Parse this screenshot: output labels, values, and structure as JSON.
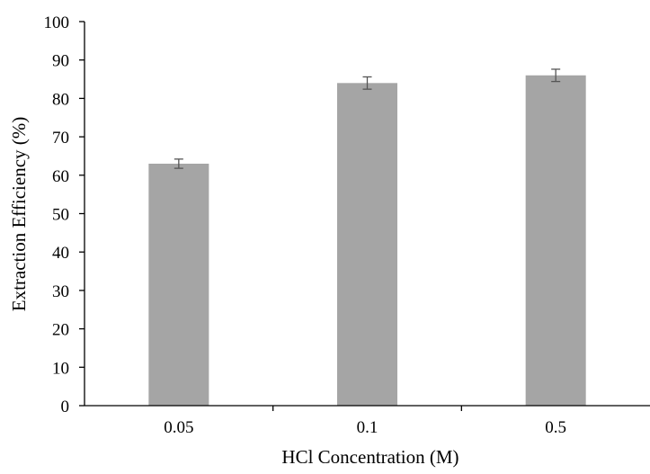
{
  "chart_data": {
    "type": "bar",
    "title": "",
    "xlabel": "HCl Concentration (M)",
    "ylabel": "Extraction Efficiency (%)",
    "categories": [
      "0.05",
      "0.1",
      "0.5"
    ],
    "series": [
      {
        "values": [
          63,
          84,
          86
        ],
        "error": [
          1.2,
          1.6,
          1.6
        ],
        "color": "#a5a5a5"
      }
    ],
    "ylim": [
      0,
      100
    ],
    "yticks": [
      0,
      10,
      20,
      30,
      40,
      50,
      60,
      70,
      80,
      90,
      100
    ],
    "ytick_labels": [
      "0",
      "10",
      "20",
      "30",
      "40",
      "50",
      "60",
      "70",
      "80",
      "90",
      "100"
    ],
    "grid": false,
    "legend": "none",
    "error_bar_color": "#555555",
    "axis_color": "#000000"
  }
}
